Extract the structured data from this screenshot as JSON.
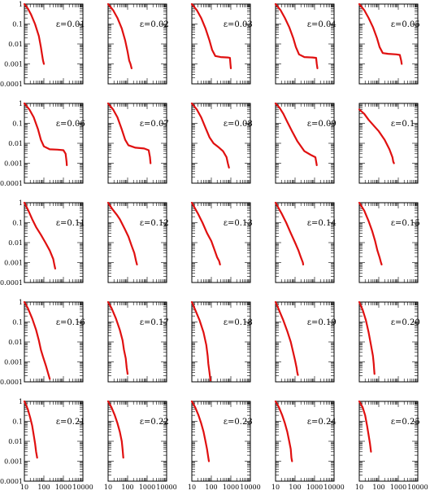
{
  "chart_data": {
    "type": "line",
    "layout": {
      "rows": 5,
      "cols": 5
    },
    "x_axis": {
      "scale": "log",
      "range": [
        10,
        10000
      ],
      "tick_labels": [
        "10",
        "100",
        "1000",
        "10000"
      ]
    },
    "y_axis": {
      "scale": "log",
      "range": [
        0.0001,
        1
      ],
      "tick_labels": [
        "1",
        "0.1",
        "0.01",
        "0.001",
        "0.0001"
      ]
    },
    "grid": false,
    "line_color": "#e01010",
    "panels": [
      {
        "label": "ε=0.01",
        "points": [
          [
            10,
            1
          ],
          [
            15,
            0.6
          ],
          [
            22,
            0.3
          ],
          [
            35,
            0.1
          ],
          [
            55,
            0.025
          ],
          [
            70,
            0.007
          ],
          [
            80,
            0.003
          ],
          [
            90,
            0.0015
          ],
          [
            100,
            0.001
          ]
        ]
      },
      {
        "label": "ε=0.02",
        "points": [
          [
            10,
            1
          ],
          [
            18,
            0.5
          ],
          [
            30,
            0.2
          ],
          [
            50,
            0.06
          ],
          [
            75,
            0.015
          ],
          [
            100,
            0.004
          ],
          [
            120,
            0.0015
          ],
          [
            140,
            0.001
          ],
          [
            160,
            0.0006
          ]
        ]
      },
      {
        "label": "ε=0.03",
        "points": [
          [
            10,
            1
          ],
          [
            18,
            0.5
          ],
          [
            30,
            0.2
          ],
          [
            50,
            0.06
          ],
          [
            80,
            0.015
          ],
          [
            110,
            0.005
          ],
          [
            160,
            0.0025
          ],
          [
            300,
            0.0022
          ],
          [
            700,
            0.0021
          ],
          [
            900,
            0.002
          ],
          [
            950,
            0.001
          ],
          [
            1000,
            0.0006
          ]
        ]
      },
      {
        "label": "ε=0.04",
        "points": [
          [
            10,
            1
          ],
          [
            18,
            0.5
          ],
          [
            30,
            0.2
          ],
          [
            50,
            0.07
          ],
          [
            80,
            0.02
          ],
          [
            110,
            0.007
          ],
          [
            160,
            0.003
          ],
          [
            300,
            0.0022
          ],
          [
            800,
            0.0021
          ],
          [
            1200,
            0.002
          ],
          [
            1300,
            0.001
          ],
          [
            1400,
            0.0006
          ]
        ]
      },
      {
        "label": "ε=0.05",
        "points": [
          [
            10,
            1
          ],
          [
            18,
            0.5
          ],
          [
            30,
            0.2
          ],
          [
            50,
            0.07
          ],
          [
            80,
            0.02
          ],
          [
            110,
            0.007
          ],
          [
            160,
            0.0035
          ],
          [
            300,
            0.0032
          ],
          [
            800,
            0.003
          ],
          [
            1200,
            0.0028
          ],
          [
            1400,
            0.0015
          ],
          [
            1500,
            0.001
          ]
        ]
      },
      {
        "label": "ε=0.06",
        "points": [
          [
            10,
            1
          ],
          [
            18,
            0.5
          ],
          [
            30,
            0.2
          ],
          [
            50,
            0.05
          ],
          [
            70,
            0.015
          ],
          [
            100,
            0.007
          ],
          [
            200,
            0.005
          ],
          [
            500,
            0.0048
          ],
          [
            1000,
            0.0045
          ],
          [
            1300,
            0.003
          ],
          [
            1450,
            0.0012
          ],
          [
            1500,
            0.0008
          ]
        ]
      },
      {
        "label": "ε=0.07",
        "points": [
          [
            10,
            1
          ],
          [
            18,
            0.5
          ],
          [
            30,
            0.2
          ],
          [
            50,
            0.05
          ],
          [
            75,
            0.015
          ],
          [
            110,
            0.008
          ],
          [
            250,
            0.006
          ],
          [
            700,
            0.0055
          ],
          [
            1200,
            0.0045
          ],
          [
            1400,
            0.002
          ],
          [
            1500,
            0.001
          ]
        ]
      },
      {
        "label": "ε=0.08",
        "points": [
          [
            10,
            1
          ],
          [
            18,
            0.5
          ],
          [
            30,
            0.2
          ],
          [
            50,
            0.06
          ],
          [
            80,
            0.02
          ],
          [
            130,
            0.01
          ],
          [
            250,
            0.006
          ],
          [
            400,
            0.004
          ],
          [
            600,
            0.002
          ],
          [
            700,
            0.001
          ],
          [
            800,
            0.0006
          ]
        ]
      },
      {
        "label": "ε=0.09",
        "points": [
          [
            10,
            1
          ],
          [
            16,
            0.6
          ],
          [
            25,
            0.3
          ],
          [
            40,
            0.12
          ],
          [
            70,
            0.04
          ],
          [
            130,
            0.013
          ],
          [
            300,
            0.004
          ],
          [
            700,
            0.0025
          ],
          [
            1100,
            0.002
          ],
          [
            1250,
            0.001
          ],
          [
            1300,
            0.0008
          ]
        ]
      },
      {
        "label": "ε=0.1",
        "points": [
          [
            10,
            0.5
          ],
          [
            18,
            0.3
          ],
          [
            30,
            0.15
          ],
          [
            60,
            0.07
          ],
          [
            100,
            0.04
          ],
          [
            200,
            0.015
          ],
          [
            350,
            0.005
          ],
          [
            500,
            0.002
          ],
          [
            550,
            0.0012
          ],
          [
            600,
            0.001
          ]
        ]
      },
      {
        "label": "ε=0.11",
        "points": [
          [
            10,
            1
          ],
          [
            16,
            0.4
          ],
          [
            25,
            0.15
          ],
          [
            40,
            0.06
          ],
          [
            70,
            0.025
          ],
          [
            120,
            0.01
          ],
          [
            200,
            0.004
          ],
          [
            300,
            0.0015
          ],
          [
            350,
            0.0007
          ],
          [
            380,
            0.0005
          ]
        ]
      },
      {
        "label": "ε=0.12",
        "points": [
          [
            10,
            1
          ],
          [
            16,
            0.5
          ],
          [
            28,
            0.25
          ],
          [
            40,
            0.15
          ],
          [
            70,
            0.05
          ],
          [
            110,
            0.02
          ],
          [
            160,
            0.007
          ],
          [
            220,
            0.003
          ],
          [
            270,
            0.0012
          ],
          [
            300,
            0.0008
          ]
        ]
      },
      {
        "label": "ε=0.13",
        "points": [
          [
            10,
            1
          ],
          [
            20,
            0.3
          ],
          [
            35,
            0.1
          ],
          [
            60,
            0.03
          ],
          [
            100,
            0.012
          ],
          [
            150,
            0.004
          ],
          [
            200,
            0.0018
          ],
          [
            250,
            0.0012
          ],
          [
            280,
            0.0008
          ]
        ]
      },
      {
        "label": "ε=0.14",
        "points": [
          [
            10,
            1
          ],
          [
            20,
            0.3
          ],
          [
            35,
            0.1
          ],
          [
            60,
            0.03
          ],
          [
            100,
            0.01
          ],
          [
            150,
            0.004
          ],
          [
            200,
            0.0018
          ],
          [
            250,
            0.001
          ],
          [
            260,
            0.0008
          ]
        ]
      },
      {
        "label": "ε=0.15",
        "points": [
          [
            10,
            1
          ],
          [
            18,
            0.4
          ],
          [
            30,
            0.12
          ],
          [
            45,
            0.04
          ],
          [
            65,
            0.012
          ],
          [
            85,
            0.004
          ],
          [
            110,
            0.0018
          ],
          [
            130,
            0.001
          ],
          [
            140,
            0.0008
          ]
        ]
      },
      {
        "label": "ε=0.16",
        "points": [
          [
            10,
            1
          ],
          [
            15,
            0.5
          ],
          [
            25,
            0.15
          ],
          [
            40,
            0.04
          ],
          [
            55,
            0.012
          ],
          [
            70,
            0.004
          ],
          [
            90,
            0.0018
          ],
          [
            130,
            0.0006
          ],
          [
            200,
            0.00014
          ]
        ]
      },
      {
        "label": "ε=0.17",
        "points": [
          [
            10,
            1
          ],
          [
            15,
            0.5
          ],
          [
            25,
            0.15
          ],
          [
            40,
            0.04
          ],
          [
            55,
            0.012
          ],
          [
            65,
            0.004
          ],
          [
            80,
            0.0015
          ],
          [
            90,
            0.0005
          ],
          [
            100,
            0.00025
          ]
        ]
      },
      {
        "label": "ε=0.18",
        "points": [
          [
            10,
            1
          ],
          [
            15,
            0.4
          ],
          [
            25,
            0.12
          ],
          [
            40,
            0.03
          ],
          [
            55,
            0.007
          ],
          [
            65,
            0.002
          ],
          [
            70,
            0.0008
          ],
          [
            80,
            0.0003
          ],
          [
            90,
            0.00012
          ]
        ]
      },
      {
        "label": "ε=0.19",
        "points": [
          [
            10,
            1
          ],
          [
            15,
            0.4
          ],
          [
            25,
            0.12
          ],
          [
            40,
            0.035
          ],
          [
            60,
            0.01
          ],
          [
            80,
            0.003
          ],
          [
            100,
            0.0012
          ],
          [
            120,
            0.0005
          ],
          [
            130,
            0.0003
          ],
          [
            140,
            0.00022
          ]
        ]
      },
      {
        "label": "ε=0.20",
        "points": [
          [
            10,
            1
          ],
          [
            15,
            0.4
          ],
          [
            22,
            0.12
          ],
          [
            30,
            0.03
          ],
          [
            40,
            0.007
          ],
          [
            50,
            0.002
          ],
          [
            55,
            0.0008
          ],
          [
            58,
            0.0004
          ],
          [
            60,
            0.00025
          ]
        ]
      },
      {
        "label": "ε=0.21",
        "points": [
          [
            10,
            1
          ],
          [
            15,
            0.4
          ],
          [
            20,
            0.15
          ],
          [
            25,
            0.06
          ],
          [
            30,
            0.02
          ],
          [
            35,
            0.008
          ],
          [
            40,
            0.003
          ],
          [
            45,
            0.0015
          ]
        ]
      },
      {
        "label": "ε=0.22",
        "points": [
          [
            10,
            1
          ],
          [
            15,
            0.5
          ],
          [
            22,
            0.2
          ],
          [
            30,
            0.08
          ],
          [
            40,
            0.03
          ],
          [
            50,
            0.01
          ],
          [
            55,
            0.004
          ],
          [
            60,
            0.0015
          ]
        ]
      },
      {
        "label": "ε=0.23",
        "points": [
          [
            10,
            1
          ],
          [
            15,
            0.5
          ],
          [
            22,
            0.2
          ],
          [
            30,
            0.08
          ],
          [
            40,
            0.03
          ],
          [
            50,
            0.01
          ],
          [
            60,
            0.004
          ],
          [
            70,
            0.0015
          ],
          [
            75,
            0.001
          ]
        ]
      },
      {
        "label": "ε=0.24",
        "points": [
          [
            10,
            1
          ],
          [
            15,
            0.5
          ],
          [
            22,
            0.2
          ],
          [
            30,
            0.08
          ],
          [
            40,
            0.03
          ],
          [
            50,
            0.01
          ],
          [
            60,
            0.004
          ],
          [
            65,
            0.0015
          ],
          [
            70,
            0.001
          ]
        ]
      },
      {
        "label": "ε=0.25",
        "points": [
          [
            10,
            1
          ],
          [
            15,
            0.5
          ],
          [
            20,
            0.2
          ],
          [
            25,
            0.06
          ],
          [
            30,
            0.02
          ],
          [
            35,
            0.008
          ],
          [
            40,
            0.003
          ]
        ]
      }
    ]
  }
}
